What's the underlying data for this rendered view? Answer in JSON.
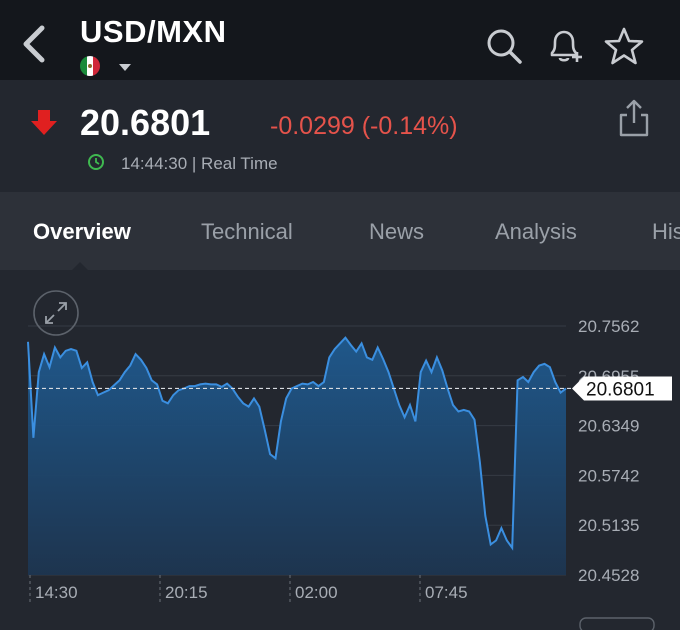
{
  "header": {
    "title": "USD/MXN",
    "icons": [
      "back-chevron-icon",
      "mexico-flag-icon",
      "dropdown-caret-icon",
      "search-icon",
      "add-alert-bell-icon",
      "star-icon"
    ]
  },
  "quote": {
    "price": "20.6801",
    "change": "-0.0299 (-0.14%)",
    "time": "14:44:30 | Real Time",
    "direction": "down",
    "colors": {
      "down": "#e5534b",
      "clock": "#3fb950"
    }
  },
  "tabs": [
    {
      "label": "Overview",
      "active": true
    },
    {
      "label": "Technical",
      "active": false
    },
    {
      "label": "News",
      "active": false
    },
    {
      "label": "Analysis",
      "active": false
    },
    {
      "label": "His",
      "active": false
    }
  ],
  "chart_data": {
    "type": "area",
    "y_ticks": [
      "20.7562",
      "20.6955",
      "20.6349",
      "20.5742",
      "20.5135",
      "20.4528"
    ],
    "x_ticks": [
      "14:30",
      "20:15",
      "02:00",
      "07:45"
    ],
    "current_label": "20.6801",
    "current_value": 20.6801,
    "ylim": [
      20.4528,
      20.7562
    ],
    "grid": true,
    "line_color": "#3b8fe0",
    "values": [
      20.737,
      20.62,
      20.7,
      20.722,
      20.706,
      20.73,
      20.718,
      20.726,
      20.728,
      20.726,
      20.705,
      20.712,
      20.688,
      20.672,
      20.675,
      20.678,
      20.684,
      20.69,
      20.7,
      20.708,
      20.722,
      20.715,
      20.705,
      20.69,
      20.685,
      20.665,
      20.662,
      20.672,
      20.678,
      20.68,
      20.683,
      20.683,
      20.685,
      20.686,
      20.685,
      20.685,
      20.682,
      20.686,
      20.68,
      20.67,
      20.662,
      20.658,
      20.668,
      20.658,
      20.63,
      20.6,
      20.595,
      20.64,
      20.668,
      20.68,
      20.683,
      20.686,
      20.685,
      20.688,
      20.683,
      20.688,
      20.718,
      20.728,
      20.735,
      20.742,
      20.733,
      20.725,
      20.735,
      20.718,
      20.715,
      20.73,
      20.716,
      20.7,
      20.68,
      20.66,
      20.645,
      20.66,
      20.64,
      20.7,
      20.714,
      20.7,
      20.718,
      20.702,
      20.68,
      20.66,
      20.652,
      20.654,
      20.652,
      20.642,
      20.59,
      20.525,
      20.49,
      20.495,
      20.51,
      20.495,
      20.486,
      20.69,
      20.694,
      20.688,
      20.7,
      20.708,
      20.71,
      20.706,
      20.688,
      20.675,
      20.68
    ]
  }
}
